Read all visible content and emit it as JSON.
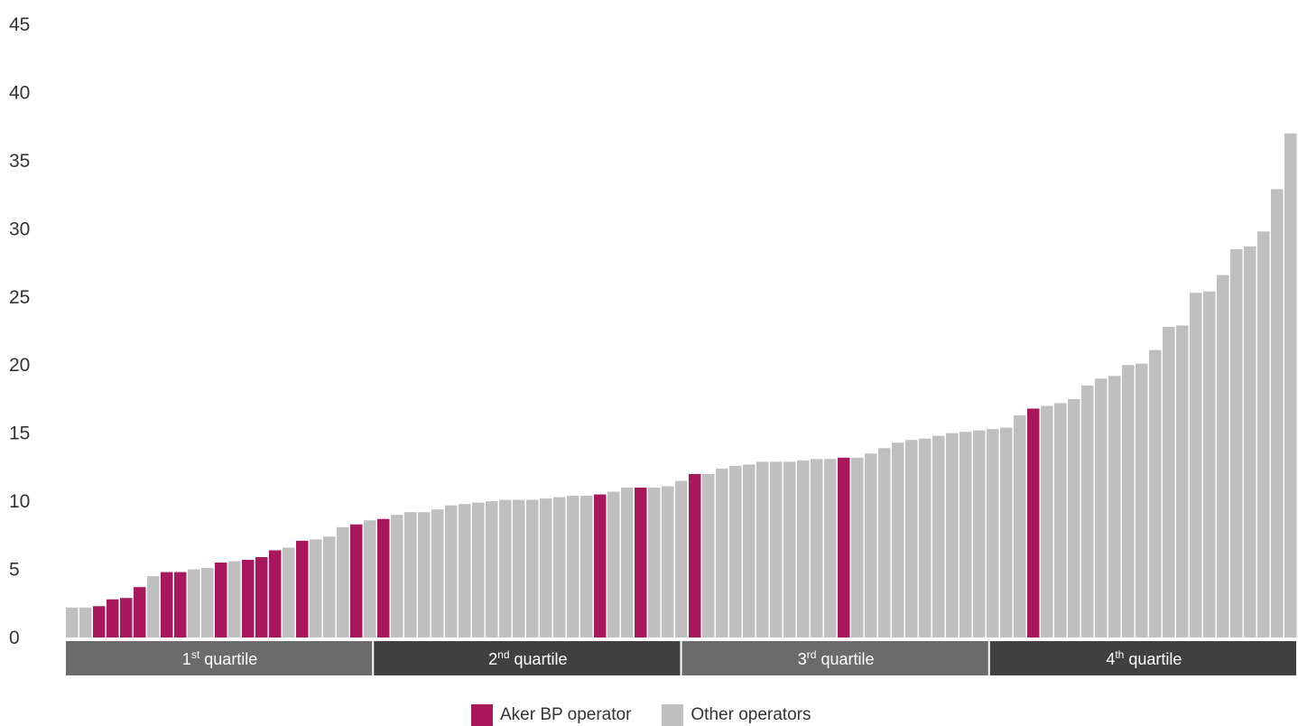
{
  "chart_data": {
    "type": "bar",
    "title": "",
    "xlabel": "",
    "ylabel": "",
    "ylim": [
      0,
      45
    ],
    "yticks": [
      0,
      5,
      10,
      15,
      20,
      25,
      30,
      35,
      40,
      45
    ],
    "grid": false,
    "legend_position": "bottom-center",
    "colors": {
      "aker": "#A8175C",
      "other": "#BFBFBF",
      "q_light": "#6B6B6B",
      "q_dark": "#404040"
    },
    "series": [
      {
        "name": "Aker BP operator",
        "key": "aker"
      },
      {
        "name": "Other operators",
        "key": "other"
      }
    ],
    "bars": [
      {
        "v": 2.2,
        "s": "other"
      },
      {
        "v": 2.2,
        "s": "other"
      },
      {
        "v": 2.3,
        "s": "aker"
      },
      {
        "v": 2.8,
        "s": "aker"
      },
      {
        "v": 2.9,
        "s": "aker"
      },
      {
        "v": 3.7,
        "s": "aker"
      },
      {
        "v": 4.5,
        "s": "other"
      },
      {
        "v": 4.8,
        "s": "aker"
      },
      {
        "v": 4.8,
        "s": "aker"
      },
      {
        "v": 5.0,
        "s": "other"
      },
      {
        "v": 5.1,
        "s": "other"
      },
      {
        "v": 5.5,
        "s": "aker"
      },
      {
        "v": 5.6,
        "s": "other"
      },
      {
        "v": 5.7,
        "s": "aker"
      },
      {
        "v": 5.9,
        "s": "aker"
      },
      {
        "v": 6.4,
        "s": "aker"
      },
      {
        "v": 6.6,
        "s": "other"
      },
      {
        "v": 7.1,
        "s": "aker"
      },
      {
        "v": 7.2,
        "s": "other"
      },
      {
        "v": 7.4,
        "s": "other"
      },
      {
        "v": 8.1,
        "s": "other"
      },
      {
        "v": 8.3,
        "s": "aker"
      },
      {
        "v": 8.6,
        "s": "other"
      },
      {
        "v": 8.7,
        "s": "aker"
      },
      {
        "v": 9.0,
        "s": "other"
      },
      {
        "v": 9.2,
        "s": "other"
      },
      {
        "v": 9.2,
        "s": "other"
      },
      {
        "v": 9.4,
        "s": "other"
      },
      {
        "v": 9.7,
        "s": "other"
      },
      {
        "v": 9.8,
        "s": "other"
      },
      {
        "v": 9.9,
        "s": "other"
      },
      {
        "v": 10.0,
        "s": "other"
      },
      {
        "v": 10.1,
        "s": "other"
      },
      {
        "v": 10.1,
        "s": "other"
      },
      {
        "v": 10.1,
        "s": "other"
      },
      {
        "v": 10.2,
        "s": "other"
      },
      {
        "v": 10.3,
        "s": "other"
      },
      {
        "v": 10.4,
        "s": "other"
      },
      {
        "v": 10.4,
        "s": "other"
      },
      {
        "v": 10.5,
        "s": "aker"
      },
      {
        "v": 10.7,
        "s": "other"
      },
      {
        "v": 11.0,
        "s": "other"
      },
      {
        "v": 11.0,
        "s": "aker"
      },
      {
        "v": 11.0,
        "s": "other"
      },
      {
        "v": 11.1,
        "s": "other"
      },
      {
        "v": 11.5,
        "s": "other"
      },
      {
        "v": 12.0,
        "s": "aker"
      },
      {
        "v": 12.0,
        "s": "other"
      },
      {
        "v": 12.4,
        "s": "other"
      },
      {
        "v": 12.6,
        "s": "other"
      },
      {
        "v": 12.7,
        "s": "other"
      },
      {
        "v": 12.9,
        "s": "other"
      },
      {
        "v": 12.9,
        "s": "other"
      },
      {
        "v": 12.9,
        "s": "other"
      },
      {
        "v": 13.0,
        "s": "other"
      },
      {
        "v": 13.1,
        "s": "other"
      },
      {
        "v": 13.1,
        "s": "other"
      },
      {
        "v": 13.2,
        "s": "aker"
      },
      {
        "v": 13.2,
        "s": "other"
      },
      {
        "v": 13.5,
        "s": "other"
      },
      {
        "v": 13.9,
        "s": "other"
      },
      {
        "v": 14.3,
        "s": "other"
      },
      {
        "v": 14.5,
        "s": "other"
      },
      {
        "v": 14.6,
        "s": "other"
      },
      {
        "v": 14.8,
        "s": "other"
      },
      {
        "v": 15.0,
        "s": "other"
      },
      {
        "v": 15.1,
        "s": "other"
      },
      {
        "v": 15.2,
        "s": "other"
      },
      {
        "v": 15.3,
        "s": "other"
      },
      {
        "v": 15.4,
        "s": "other"
      },
      {
        "v": 16.3,
        "s": "other"
      },
      {
        "v": 16.8,
        "s": "aker"
      },
      {
        "v": 17.0,
        "s": "other"
      },
      {
        "v": 17.2,
        "s": "other"
      },
      {
        "v": 17.5,
        "s": "other"
      },
      {
        "v": 18.5,
        "s": "other"
      },
      {
        "v": 19.0,
        "s": "other"
      },
      {
        "v": 19.2,
        "s": "other"
      },
      {
        "v": 20.0,
        "s": "other"
      },
      {
        "v": 20.1,
        "s": "other"
      },
      {
        "v": 21.1,
        "s": "other"
      },
      {
        "v": 22.8,
        "s": "other"
      },
      {
        "v": 22.9,
        "s": "other"
      },
      {
        "v": 25.3,
        "s": "other"
      },
      {
        "v": 25.4,
        "s": "other"
      },
      {
        "v": 26.6,
        "s": "other"
      },
      {
        "v": 28.5,
        "s": "other"
      },
      {
        "v": 28.7,
        "s": "other"
      },
      {
        "v": 29.8,
        "s": "other"
      },
      {
        "v": 32.9,
        "s": "other"
      },
      {
        "v": 37.0,
        "s": "other"
      }
    ],
    "quartiles": [
      {
        "num": "1",
        "sup": "st",
        "text": " quartile",
        "shade": "q_light"
      },
      {
        "num": "2",
        "sup": "nd",
        "text": " quartile",
        "shade": "q_dark"
      },
      {
        "num": "3",
        "sup": "rd",
        "text": " quartile",
        "shade": "q_light"
      },
      {
        "num": "4",
        "sup": "th",
        "text": " quartile",
        "shade": "q_dark"
      }
    ]
  }
}
